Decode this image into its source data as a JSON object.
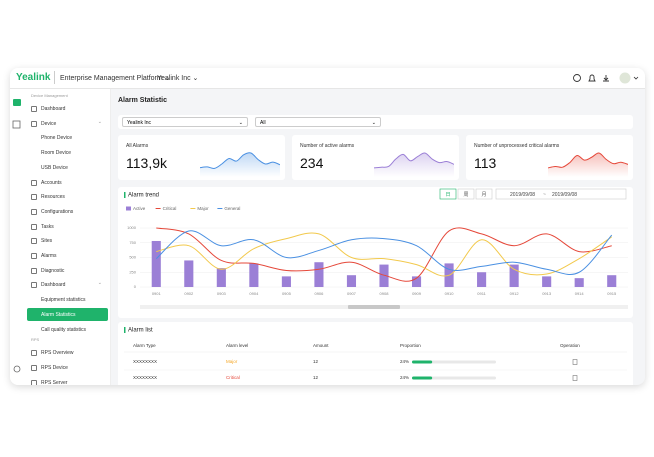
{
  "header": {
    "logo": "Yealink",
    "product": "Enterprise Management Platform",
    "org": "Yealink Inc"
  },
  "nav": {
    "sections": [
      {
        "title": "Device Management",
        "items": [
          {
            "label": "Dashboard"
          },
          {
            "label": "Device",
            "children": [
              {
                "label": "Phone Device"
              },
              {
                "label": "Room Device"
              },
              {
                "label": "USB Device"
              }
            ]
          },
          {
            "label": "Accounts"
          },
          {
            "label": "Resources"
          },
          {
            "label": "Configurations"
          },
          {
            "label": "Tasks"
          },
          {
            "label": "Sites"
          },
          {
            "label": "Alarms"
          },
          {
            "label": "Diagnostic"
          },
          {
            "label": "Dashboard",
            "children": [
              {
                "label": "Equipment statistics"
              },
              {
                "label": "Alarm Statistics",
                "active": true
              },
              {
                "label": "Call quality statistics"
              }
            ]
          }
        ]
      },
      {
        "title": "RPS",
        "items": [
          {
            "label": "RPS Overview"
          },
          {
            "label": "RPS Device"
          },
          {
            "label": "RPS Server"
          }
        ]
      }
    ]
  },
  "page": {
    "title": "Alarm Statistic",
    "filters": [
      "Yealink Inc",
      "All"
    ]
  },
  "cards": [
    {
      "label": "All Alarms",
      "value": "113,9k",
      "color": "#4a90e2",
      "trend": [
        20,
        22,
        18,
        30,
        45,
        38,
        55,
        60,
        42,
        30,
        35,
        28
      ]
    },
    {
      "label": "Number of active alarms",
      "value": "234",
      "color": "#9b7fd6",
      "trend": [
        20,
        22,
        24,
        45,
        58,
        40,
        52,
        62,
        45,
        35,
        38,
        30
      ]
    },
    {
      "label": "Number of unprocessed critical alarms",
      "value": "113",
      "color": "#e5483a",
      "trend": [
        20,
        24,
        22,
        35,
        55,
        42,
        50,
        62,
        44,
        32,
        36,
        30
      ]
    }
  ],
  "chart_data": {
    "type": "combo",
    "title": "Alarm trend",
    "periods": [
      "日",
      "周",
      "月"
    ],
    "date_range": [
      "2019/09/08",
      "2019/09/08"
    ],
    "date_separator": "~",
    "categories": [
      "0901",
      "0902",
      "0903",
      "0904",
      "0905",
      "0906",
      "0907",
      "0908",
      "0909",
      "0910",
      "0911",
      "0912",
      "0913",
      "0914",
      "0915"
    ],
    "ylim": [
      0,
      1000
    ],
    "yticks": [
      0,
      250,
      500,
      750,
      1000
    ],
    "grid": true,
    "series": [
      {
        "name": "Active",
        "type": "bar",
        "color": "#9b7fd6",
        "values": [
          780,
          450,
          320,
          400,
          180,
          420,
          200,
          380,
          180,
          400,
          250,
          380,
          180,
          150,
          200
        ]
      },
      {
        "name": "Critical",
        "type": "line",
        "color": "#e5483a",
        "values": [
          1000,
          900,
          450,
          400,
          280,
          300,
          420,
          200,
          150,
          950,
          900,
          700,
          900,
          600,
          700
        ]
      },
      {
        "name": "Major",
        "type": "line",
        "color": "#f2c94c",
        "values": [
          600,
          700,
          300,
          650,
          820,
          900,
          500,
          480,
          380,
          200,
          800,
          300,
          220,
          480,
          850
        ]
      },
      {
        "name": "General",
        "type": "line",
        "color": "#4a90e2",
        "values": [
          480,
          950,
          700,
          800,
          500,
          620,
          800,
          820,
          700,
          300,
          350,
          420,
          300,
          250,
          880
        ]
      }
    ]
  },
  "table": {
    "title": "Alarm list",
    "columns": [
      "Alarm Type",
      "Alarm level",
      "Amount",
      "Proportion",
      "Operation"
    ],
    "rows": [
      {
        "type": "XXXXXXXX",
        "level": "Major",
        "color": "#f5a623",
        "amount": "12",
        "proportion": 24,
        "proportion_label": "24%"
      },
      {
        "type": "XXXXXXXX",
        "level": "Critical",
        "color": "#e5483a",
        "amount": "12",
        "proportion": 24,
        "proportion_label": "24%"
      }
    ]
  }
}
